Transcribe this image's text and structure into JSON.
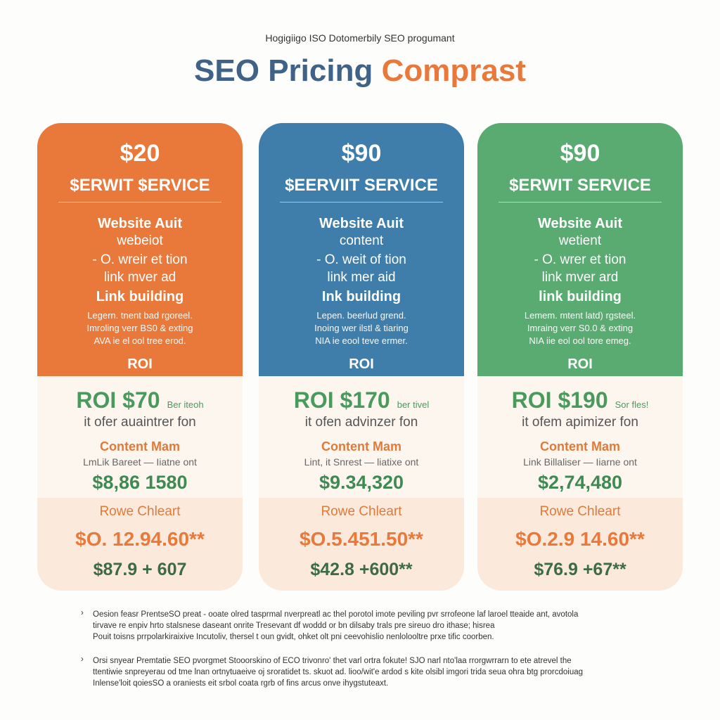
{
  "header": {
    "subtitle": "Hogigiigo ISO Dotomerbily SEO progumant",
    "title_part1": "SEO Pricing",
    "title_part2": "Comprast"
  },
  "cards": [
    {
      "price": "$20",
      "service": "$ERWIT $ERVICE",
      "features": [
        "Website Auit",
        "webeiot",
        "- O. wreir et tion",
        "link mver ad",
        "Link building"
      ],
      "description": [
        "Legern. tnent bad rgoreel.",
        "Imroling verr BS0 & exting",
        "AVA ie el ool tree erod."
      ],
      "roi_label": "ROI",
      "roi": "ROI $70",
      "roi_note": "Ber iteoh",
      "roi_sub": "it ofer auaintrer fon",
      "content_label": "Content Mam",
      "content_sub": "LmLik Bareet — Iiatne ont",
      "content_value": "$8,86 1580",
      "route_label": "Rowe Chleart",
      "route_value": "$O. 12.94.60**",
      "total": "$87.9 + 607"
    },
    {
      "price": "$90",
      "service": "$EERVIIT SERVICE",
      "features": [
        "Website Auit",
        "content",
        "- O. weit of tion",
        "link mer aid",
        "Ink building"
      ],
      "description": [
        "Lepen. beerlud grend.",
        "Inoing wer ilstl & tiaring",
        "NIA ie eool teve ermer."
      ],
      "roi_label": "ROI",
      "roi": "ROI $170",
      "roi_note": "ber tivel",
      "roi_sub": "it ofen advinzer fon",
      "content_label": "Content Mam",
      "content_sub": "Lint, it Snrest — liatixe ont",
      "content_value": "$9.34,320",
      "route_label": "Rowe Chleart",
      "route_value": "$O.5.451.50**",
      "total": "$42.8 +600**"
    },
    {
      "price": "$90",
      "service": "$ERWIT SERVICE",
      "features": [
        "Website Auit",
        "wetient",
        "- O. wrer et tion",
        "link mver ard",
        "link building"
      ],
      "description": [
        "Lemem. mtent latd) rgsteel.",
        "Imraing verr S0.0 & exting",
        "NIA iie eol ool tore emeg."
      ],
      "roi_label": "ROI",
      "roi": "ROI $190",
      "roi_note": "Sor fles!",
      "roi_sub": "it ofem apimizer fon",
      "content_label": "Content Mam",
      "content_sub": "Link Billaliser — Iiarne ont",
      "content_value": "$2,74,480",
      "route_label": "Rowe Chleart",
      "route_value": "$O.2.9 14.60**",
      "total": "$76.9 +67**"
    }
  ],
  "notes": [
    [
      "Oesion feasr PrentseSO preat - ooate olred tasprmal nverpreatl ac thel porotol imote peviling pvr srrofeone laf laroel tteaide ant, avotola",
      "tirvave re enpiv hrto stalsnese daseant onrite Tresevant df woddd or bn dilsaby trals pre sireuo dro ithase; hisrea",
      "Pouit toisns prrpolarkiraixive Incutoliv, thersel t oun gvidt, ohket olt pni ceevohislio nenlolooltre prxe tific coorben."
    ],
    [
      "Orsi snyear Premtatie SEO pvorgmet Stooorskino of ECO trivonro' thet varl ortra fokute! SJO narl nto'laa rrorgwrrarn to ete atrevel the",
      "ttentiwie snpreyerau od tme lnan ortnytuaeive oj sroratidet ts. skuot ad. lioo/wit'e ardod s kite olsibl imgori trida seua ohra btg prorcdoiuag",
      "Inlense'loit qoiesSO a oraniests eit srbol coata rgrb of fins arcus onve ihygstuteaxt."
    ]
  ]
}
